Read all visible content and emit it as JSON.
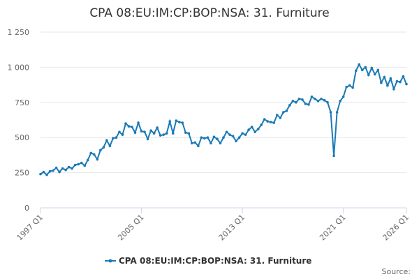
{
  "chart_data": {
    "type": "line",
    "title": "CPA 08:EU:IM:CP:BOP:NSA: 31. Furniture",
    "categories": [
      "1997 Q1",
      null,
      null,
      null,
      null,
      null,
      null,
      null,
      null,
      null,
      null,
      null,
      null,
      null,
      null,
      null,
      null,
      null,
      null,
      null,
      null,
      null,
      null,
      null,
      null,
      null,
      null,
      null,
      null,
      null,
      null,
      null,
      "2005 Q1",
      null,
      null,
      null,
      null,
      null,
      null,
      null,
      null,
      null,
      null,
      null,
      null,
      null,
      null,
      null,
      null,
      null,
      null,
      null,
      null,
      null,
      null,
      null,
      null,
      null,
      null,
      null,
      null,
      null,
      null,
      null,
      "2013 Q1",
      null,
      null,
      null,
      null,
      null,
      null,
      null,
      null,
      null,
      null,
      null,
      null,
      null,
      null,
      null,
      null,
      null,
      null,
      null,
      null,
      null,
      null,
      null,
      null,
      null,
      null,
      null,
      null,
      null,
      null,
      null,
      "2021 Q1",
      null,
      null,
      null,
      null,
      null,
      null,
      null,
      null,
      null,
      null,
      null,
      null,
      null,
      null,
      null,
      null,
      null,
      null,
      null,
      "2026 Q1"
    ],
    "series": [
      {
        "name": "CPA 08:EU:IM:CP:BOP:NSA: 31. Furniture",
        "color": "#1a7ab5",
        "values": [
          240,
          255,
          235,
          260,
          265,
          285,
          255,
          280,
          270,
          290,
          280,
          305,
          310,
          320,
          300,
          340,
          390,
          380,
          345,
          410,
          430,
          480,
          440,
          495,
          500,
          540,
          520,
          600,
          580,
          575,
          535,
          605,
          545,
          540,
          490,
          550,
          530,
          570,
          515,
          520,
          530,
          615,
          530,
          620,
          610,
          605,
          535,
          530,
          460,
          465,
          440,
          500,
          495,
          500,
          460,
          505,
          490,
          460,
          500,
          540,
          520,
          510,
          475,
          500,
          530,
          520,
          555,
          575,
          540,
          560,
          590,
          630,
          615,
          610,
          605,
          660,
          640,
          680,
          690,
          730,
          760,
          750,
          775,
          770,
          740,
          735,
          790,
          775,
          760,
          775,
          765,
          750,
          680,
          370,
          680,
          760,
          790,
          860,
          870,
          855,
          975,
          1020,
          980,
          1000,
          945,
          995,
          950,
          980,
          890,
          930,
          870,
          920,
          845,
          900,
          895,
          935,
          880
        ]
      }
    ],
    "ylim": [
      0,
      1250
    ],
    "yticks": [
      0,
      250,
      500,
      750,
      {
        "value": 1000,
        "label": "1 000"
      },
      {
        "value": 1250,
        "label": "1 250"
      }
    ],
    "grid": true,
    "source": "Source:"
  }
}
